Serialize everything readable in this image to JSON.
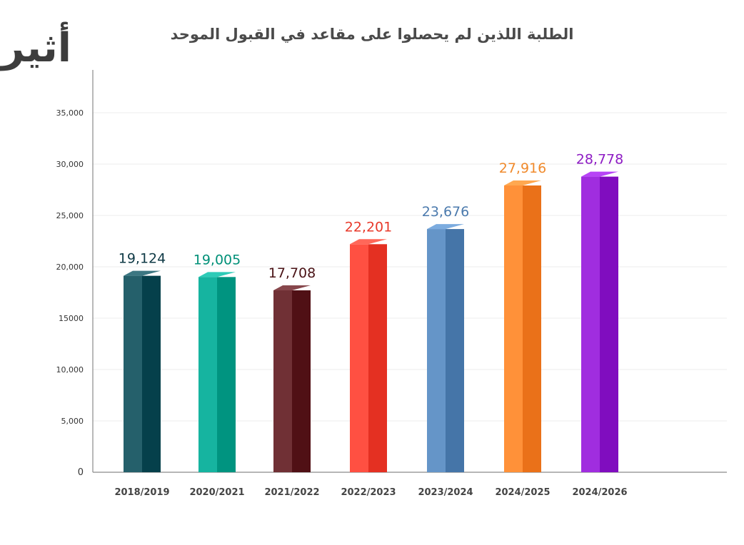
{
  "logo": {
    "text": "أثير"
  },
  "chart_data": {
    "type": "bar",
    "title": "الطلبة اللذين لم يحصلوا على مقاعد في القبول الموحد",
    "xlabel": "",
    "ylabel": "",
    "ylim": [
      0,
      35000
    ],
    "grid": true,
    "y_ticks": [
      {
        "value": 0,
        "label": "0"
      },
      {
        "value": 5000,
        "label": "5,000"
      },
      {
        "value": 10000,
        "label": "10,000"
      },
      {
        "value": 15000,
        "label": "15000"
      },
      {
        "value": 20000,
        "label": "20,000"
      },
      {
        "value": 25000,
        "label": "25,000"
      },
      {
        "value": 30000,
        "label": "30,000"
      },
      {
        "value": 35000,
        "label": "35,000"
      }
    ],
    "categories": [
      "2018/2019",
      "2020/2021",
      "2021/2022",
      "2022/2023",
      "2023/2024",
      "2024/2025",
      "2024/2026"
    ],
    "values": [
      19124,
      19005,
      17708,
      22201,
      23676,
      27916,
      28778
    ],
    "value_labels": [
      "19,124",
      "19,005",
      "17,708",
      "22,201",
      "23,676",
      "27,916",
      "28,778"
    ],
    "colors": [
      "#0f4a55",
      "#009e8a",
      "#5a1a1f",
      "#ee3a2c",
      "#4f7fb2",
      "#f47b23",
      "#8a17c9"
    ],
    "label_colors": [
      "#0f3a46",
      "#009078",
      "#4a1316",
      "#e8392a",
      "#4b7aad",
      "#f08a2c",
      "#8e1cc4"
    ]
  }
}
